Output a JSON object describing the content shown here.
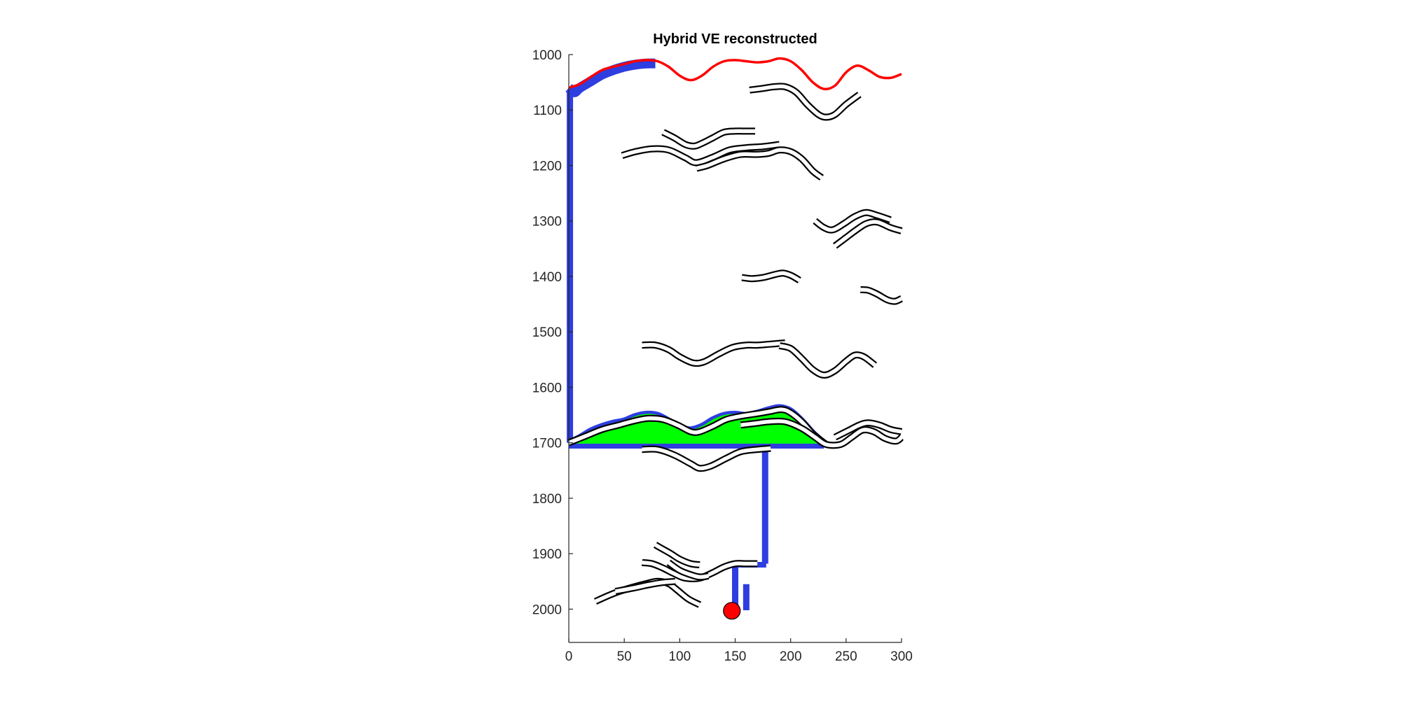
{
  "chart_data": {
    "type": "line",
    "title": "Hybrid VE reconstructed",
    "xlabel": "",
    "ylabel": "",
    "xlim": [
      0,
      300
    ],
    "ylim": [
      1000,
      2060
    ],
    "y_reversed": true,
    "grid": false,
    "x_ticks": [
      0,
      50,
      100,
      150,
      200,
      250,
      300
    ],
    "y_ticks": [
      1000,
      1100,
      1200,
      1300,
      1400,
      1500,
      1600,
      1700,
      1800,
      1900,
      2000
    ],
    "colors": {
      "top_surface": "#ff0000",
      "plume": "#2e3ee0",
      "co2_layer": "#00ff00",
      "shale_outline": "#000000",
      "well": "#ff0000"
    },
    "top_surface": {
      "x": [
        0,
        10,
        20,
        30,
        40,
        50,
        60,
        70,
        80,
        90,
        100,
        110,
        120,
        130,
        140,
        150,
        160,
        170,
        180,
        190,
        200,
        210,
        220,
        230,
        240,
        250,
        260,
        270,
        280,
        290,
        300
      ],
      "y": [
        1060,
        1053,
        1040,
        1028,
        1022,
        1017,
        1012,
        1010,
        1012,
        1022,
        1038,
        1046,
        1038,
        1022,
        1012,
        1010,
        1012,
        1014,
        1012,
        1007,
        1012,
        1028,
        1050,
        1062,
        1056,
        1032,
        1020,
        1028,
        1040,
        1042,
        1035
      ]
    },
    "plume_top": {
      "x": [
        0,
        5,
        10,
        20,
        30,
        40,
        50,
        60,
        70,
        78
      ],
      "y": [
        1060,
        1068,
        1060,
        1048,
        1036,
        1028,
        1022,
        1018,
        1016,
        1016
      ]
    },
    "co2_layer": {
      "x": [
        0,
        10,
        20,
        30,
        40,
        50,
        60,
        70,
        80,
        90,
        100,
        110,
        120,
        130,
        140,
        150,
        160,
        170,
        180,
        190,
        200,
        210,
        220,
        230
      ],
      "top": [
        1700,
        1690,
        1678,
        1670,
        1664,
        1660,
        1652,
        1648,
        1650,
        1660,
        1672,
        1676,
        1670,
        1658,
        1650,
        1648,
        1650,
        1646,
        1640,
        1636,
        1642,
        1660,
        1682,
        1700
      ],
      "bottom": [
        1700,
        1702,
        1702,
        1703,
        1703,
        1704,
        1704,
        1705,
        1705,
        1705,
        1705,
        1705,
        1704,
        1704,
        1704,
        1704,
        1704,
        1704,
        1704,
        1704,
        1704,
        1704,
        1703,
        1702
      ]
    },
    "shale_layers": [
      {
        "x": [
          163,
          175,
          185,
          195,
          205,
          215,
          225,
          232,
          240,
          250,
          262
        ],
        "y": [
          1064,
          1061,
          1058,
          1058,
          1068,
          1090,
          1108,
          1113,
          1108,
          1090,
          1072
        ]
      },
      {
        "x": [
          85,
          95,
          105,
          113,
          120,
          130,
          140,
          150,
          160,
          168
        ],
        "y": [
          1140,
          1150,
          1162,
          1165,
          1160,
          1150,
          1140,
          1138,
          1138,
          1138
        ]
      },
      {
        "x": [
          48,
          60,
          75,
          90,
          105,
          115,
          130,
          145,
          160,
          175,
          190
        ],
        "y": [
          1182,
          1175,
          1170,
          1172,
          1186,
          1195,
          1185,
          1172,
          1168,
          1166,
          1162
        ]
      },
      {
        "x": [
          115,
          125,
          140,
          155,
          170,
          180,
          190,
          200,
          210,
          220,
          228
        ],
        "y": [
          1205,
          1200,
          1188,
          1180,
          1180,
          1178,
          1172,
          1175,
          1188,
          1210,
          1222
        ]
      },
      {
        "x": [
          222,
          230,
          238,
          248,
          258,
          268,
          278,
          290
        ],
        "y": [
          1300,
          1312,
          1316,
          1305,
          1292,
          1285,
          1290,
          1298
        ]
      },
      {
        "x": [
          240,
          250,
          258,
          268,
          278,
          290,
          300
        ],
        "y": [
          1345,
          1330,
          1318,
          1305,
          1302,
          1312,
          1318
        ]
      },
      {
        "x": [
          156,
          165,
          175,
          185,
          193,
          200,
          208
        ],
        "y": [
          1402,
          1404,
          1402,
          1397,
          1394,
          1398,
          1407
        ]
      },
      {
        "x": [
          263,
          270,
          278,
          287,
          294,
          300
        ],
        "y": [
          1424,
          1425,
          1432,
          1442,
          1445,
          1440
        ]
      },
      {
        "x": [
          66,
          78,
          90,
          100,
          112,
          122,
          135,
          148,
          160,
          170,
          182,
          195
        ],
        "y": [
          1524,
          1524,
          1532,
          1545,
          1556,
          1554,
          1540,
          1528,
          1524,
          1524,
          1522,
          1520
        ]
      },
      {
        "x": [
          190,
          200,
          210,
          220,
          230,
          240,
          250,
          258,
          266,
          276
        ],
        "y": [
          1525,
          1530,
          1548,
          1568,
          1578,
          1570,
          1553,
          1542,
          1545,
          1560
        ]
      },
      {
        "x": [
          0,
          15,
          30,
          45,
          60,
          72,
          85,
          98,
          110,
          118,
          130,
          142,
          155,
          168,
          180,
          192,
          200,
          210,
          220,
          232
        ],
        "y": [
          1700,
          1688,
          1676,
          1668,
          1660,
          1656,
          1658,
          1668,
          1680,
          1680,
          1670,
          1658,
          1652,
          1648,
          1644,
          1640,
          1646,
          1662,
          1684,
          1703
        ]
      },
      {
        "x": [
          155,
          168,
          180,
          195,
          210,
          222,
          232,
          245,
          255,
          265,
          275,
          285,
          295,
          300
        ],
        "y": [
          1668,
          1665,
          1662,
          1662,
          1674,
          1690,
          1703,
          1703,
          1690,
          1677,
          1680,
          1692,
          1697,
          1690
        ]
      },
      {
        "x": [
          240,
          252,
          262,
          270,
          280,
          290,
          300
        ],
        "y": [
          1690,
          1678,
          1668,
          1664,
          1668,
          1676,
          1680
        ]
      },
      {
        "x": [
          66,
          80,
          95,
          110,
          118,
          128,
          142,
          155,
          170,
          182
        ],
        "y": [
          1712,
          1712,
          1722,
          1738,
          1746,
          1742,
          1728,
          1716,
          1712,
          1710
        ]
      },
      {
        "x": [
          78,
          85,
          92,
          100,
          110,
          118
        ],
        "y": [
          1884,
          1892,
          1900,
          1910,
          1918,
          1920
        ]
      },
      {
        "x": [
          66,
          75,
          85,
          95,
          105,
          118,
          130,
          140,
          150,
          160,
          170
        ],
        "y": [
          1916,
          1918,
          1926,
          1936,
          1944,
          1944,
          1934,
          1924,
          1918,
          1918,
          1918
        ]
      },
      {
        "x": [
          90,
          100,
          110,
          118,
          126
        ],
        "y": [
          1916,
          1930,
          1938,
          1942,
          1940
        ]
      },
      {
        "x": [
          24,
          40,
          55,
          70,
          80,
          90,
          98,
          108,
          118
        ],
        "y": [
          1986,
          1972,
          1962,
          1954,
          1950,
          1954,
          1966,
          1982,
          1992
        ]
      },
      {
        "x": [
          42,
          58,
          72,
          84,
          96
        ],
        "y": [
          1968,
          1962,
          1956,
          1952,
          1950
        ]
      }
    ],
    "plume_columns": [
      {
        "x": [
          1,
          1
        ],
        "y": [
          1068,
          1700
        ]
      },
      {
        "x": [
          177,
          177
        ],
        "y": [
          1712,
          1918
        ]
      },
      {
        "x": [
          150,
          150
        ],
        "y": [
          1924,
          2002
        ]
      },
      {
        "x": [
          160,
          160
        ],
        "y": [
          1955,
          2002
        ]
      }
    ],
    "well": {
      "x": 147,
      "y": 2003
    }
  }
}
